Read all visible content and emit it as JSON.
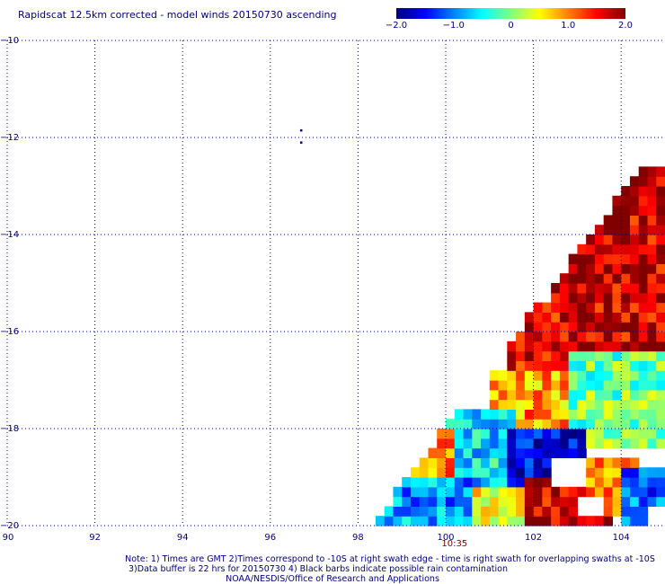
{
  "chart_data": {
    "type": "heatmap",
    "title": "Rapidscat 12.5km corrected - model winds 20150730 ascending",
    "colorbar": {
      "range": [
        -2.0,
        2.0
      ],
      "tick_labels": [
        "-2.0",
        "-1.0",
        "0",
        "1.0",
        "2.0"
      ],
      "tick_values": [
        -2.0,
        -1.0,
        0,
        1.0,
        2.0
      ],
      "colors": [
        "#000080",
        "#0000ff",
        "#0080ff",
        "#00ffff",
        "#80ff80",
        "#ffff00",
        "#ff8000",
        "#ff0000",
        "#800000"
      ]
    },
    "x_axis": {
      "range": [
        90,
        105
      ],
      "ticks": [
        90,
        92,
        94,
        96,
        98,
        100,
        102,
        104
      ],
      "tick_labels": [
        "90",
        "92",
        "94",
        "96",
        "98",
        "100",
        "102",
        "104"
      ]
    },
    "y_axis": {
      "range": [
        -20,
        -10
      ],
      "ticks": [
        -10,
        -12,
        -14,
        -16,
        -18,
        -20
      ],
      "tick_labels": [
        "-10",
        "-12",
        "-14",
        "-16",
        "-18",
        "-20"
      ]
    },
    "grid": true,
    "swath_time_label": "10:35",
    "swath_time_lon": 100.2,
    "swath": {
      "edge_top": [
        104.8,
        -12.2
      ],
      "edge_bottom": [
        98.3,
        -20.0
      ],
      "regions": [
        {
          "lon": [
            102.4,
            105
          ],
          "lat": [
            -16.5,
            -12.6
          ],
          "value": 1.7
        },
        {
          "lon": [
            101.4,
            103.0
          ],
          "lat": [
            -17.5,
            -15.5
          ],
          "value": 1.6
        },
        {
          "lon": [
            102.8,
            105
          ],
          "lat": [
            -18.5,
            -16.5
          ],
          "value": -0.1
        },
        {
          "lon": [
            101.0,
            102.8
          ],
          "lat": [
            -18.3,
            -16.8
          ],
          "value": 0.9
        },
        {
          "lon": [
            100.0,
            101.6
          ],
          "lat": [
            -19.2,
            -17.6
          ],
          "value": -0.6
        },
        {
          "lon": [
            101.4,
            103.2
          ],
          "lat": [
            -19.4,
            -18.0
          ],
          "value": -1.6
        },
        {
          "lon": [
            98.6,
            100.2
          ],
          "lat": [
            -19.2,
            -18.0
          ],
          "value": 0.9
        },
        {
          "lon": [
            98.4,
            101.0
          ],
          "lat": [
            -20,
            -19.0
          ],
          "value": -0.9
        },
        {
          "lon": [
            100.6,
            101.8
          ],
          "lat": [
            -20,
            -19.2
          ],
          "value": 0.4
        },
        {
          "lon": [
            101.8,
            103.8
          ],
          "lat": [
            -20,
            -19.0
          ],
          "value": 1.7
        },
        {
          "lon": [
            103.2,
            104.4
          ],
          "lat": [
            -19.8,
            -18.6
          ],
          "value": 1.0
        },
        {
          "lon": [
            104.0,
            105
          ],
          "lat": [
            -20,
            -18.8
          ],
          "value": -1.1
        }
      ],
      "gaps": [
        {
          "lon": [
            102.4,
            103.2
          ],
          "lat": [
            -19.2,
            -18.6
          ]
        },
        {
          "lon": [
            103.0,
            103.6
          ],
          "lat": [
            -19.8,
            -19.4
          ]
        },
        {
          "lon": [
            104.6,
            105
          ],
          "lat": [
            -20,
            -19.6
          ]
        }
      ]
    },
    "isolated_marks": [
      {
        "lon": 96.7,
        "lat": -11.85
      },
      {
        "lon": 96.7,
        "lat": -12.1
      }
    ]
  },
  "notes": {
    "line1": "Note: 1) Times are GMT 2)Times correspond to -10S at right swath edge - time is right swath for overlapping swaths at -10S",
    "line2": "3)Data buffer is 22 hrs for 20150730 4) Black barbs indicate possible rain contamination",
    "line3": "NOAA/NESDIS/Office of Research and Applications"
  }
}
